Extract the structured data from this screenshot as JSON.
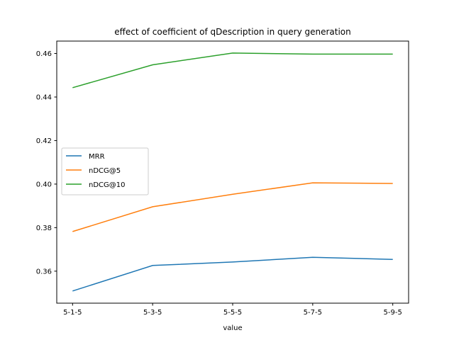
{
  "chart_data": {
    "type": "line",
    "title": "effect of coefficient of qDescription in query generation",
    "xlabel": "value",
    "ylabel": "",
    "categories": [
      "5-1-5",
      "5-3-5",
      "5-5-5",
      "5-7-5",
      "5-9-5"
    ],
    "ylim": [
      0.3453,
      0.4657
    ],
    "yticks": [
      0.36,
      0.38,
      0.4,
      0.42,
      0.44,
      0.46
    ],
    "ytick_labels": [
      "0.36",
      "0.38",
      "0.40",
      "0.42",
      "0.44",
      "0.46"
    ],
    "grid": false,
    "legend_position": "center-left",
    "series": [
      {
        "name": "MRR",
        "color": "#1f77b4",
        "values": [
          0.3509,
          0.3626,
          0.3642,
          0.3664,
          0.3654
        ]
      },
      {
        "name": "nDCG@5",
        "color": "#ff7f0e",
        "values": [
          0.3782,
          0.3896,
          0.3953,
          0.4006,
          0.4003
        ]
      },
      {
        "name": "nDCG@10",
        "color": "#2ca02c",
        "values": [
          0.4443,
          0.4548,
          0.4602,
          0.4597,
          0.4597
        ]
      }
    ]
  }
}
